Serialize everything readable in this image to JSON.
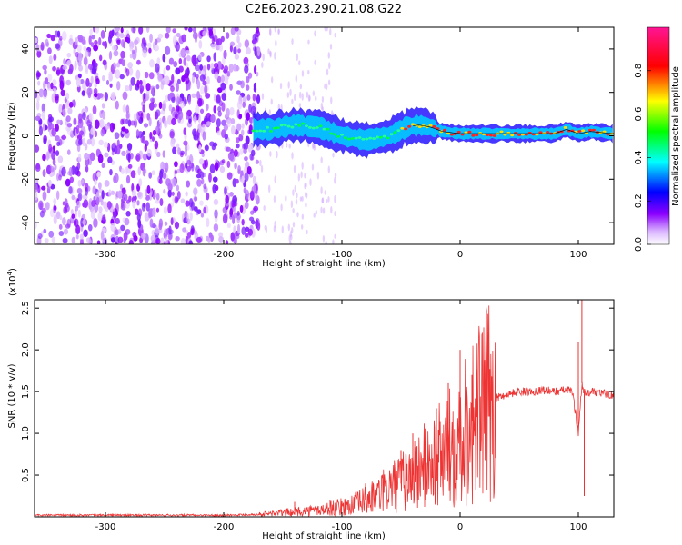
{
  "chart_data": [
    {
      "type": "heatmap",
      "title": "C2E6.2023.290.21.08.G22",
      "xlabel": "Height of straight line (km)",
      "ylabel": "Frequency (Hz)",
      "xlim": [
        -360,
        130
      ],
      "ylim": [
        -50,
        50
      ],
      "x_ticks": [
        -300,
        -200,
        -100,
        0,
        100
      ],
      "y_ticks": [
        -40,
        -20,
        0,
        20,
        40
      ],
      "colorbar": {
        "label": "Normalized spectral amplitude",
        "range": [
          0,
          1
        ],
        "ticks": [
          0.0,
          0.2,
          0.4,
          0.6,
          0.8
        ],
        "colors": [
          "#ffffff",
          "#8b00ff",
          "#0000ff",
          "#00ffff",
          "#00ff00",
          "#ffff00",
          "#ff0000",
          "#ff1493"
        ]
      },
      "grid": false,
      "ridge": {
        "x": [
          -175,
          -160,
          -140,
          -120,
          -100,
          -80,
          -60,
          -45,
          -35,
          -25,
          -15,
          0,
          20,
          40,
          60,
          80,
          90,
          100,
          110,
          130
        ],
        "y": [
          3,
          3,
          5,
          4,
          0,
          -2,
          0,
          4,
          5,
          4,
          2,
          1,
          1,
          1,
          1,
          1,
          3,
          1,
          2,
          1
        ]
      }
    },
    {
      "type": "line",
      "xlabel": "Height of straight line (km)",
      "ylabel": "SNR (10 * v/v)",
      "y_scale_label": "(x10",
      "y_scale_exp": "4",
      "y_scale_close": ")",
      "xlim": [
        -360,
        130
      ],
      "ylim": [
        0,
        2.6
      ],
      "x_ticks": [
        -300,
        -200,
        -100,
        0,
        100
      ],
      "y_ticks": [
        0.5,
        1.0,
        1.5,
        2.0,
        2.5
      ],
      "grid": false,
      "series": [
        {
          "color": "#ee3333",
          "x": [
            -360,
            -300,
            -250,
            -200,
            -170,
            -150,
            -130,
            -120,
            -110,
            -100,
            -90,
            -80,
            -70,
            -60,
            -50,
            -40,
            -30,
            -20,
            -10,
            0,
            10,
            20,
            30,
            40,
            50,
            60,
            70,
            80,
            90,
            95,
            100,
            103,
            106,
            110,
            120,
            130
          ],
          "y": [
            0.02,
            0.02,
            0.02,
            0.02,
            0.03,
            0.05,
            0.07,
            0.08,
            0.1,
            0.12,
            0.15,
            0.2,
            0.25,
            0.35,
            0.4,
            0.5,
            0.6,
            0.7,
            0.8,
            1.0,
            1.15,
            1.3,
            1.42,
            1.47,
            1.5,
            1.5,
            1.52,
            1.5,
            1.52,
            1.5,
            1.0,
            1.6,
            1.45,
            1.5,
            1.48,
            1.46
          ]
        }
      ],
      "peaks": {
        "x": [
          -140,
          -110,
          -80,
          -50,
          -40,
          -30,
          -20,
          -10,
          0,
          5,
          10,
          100,
          103,
          105
        ],
        "y": [
          0.18,
          0.2,
          0.4,
          0.8,
          1.0,
          0.9,
          1.3,
          1.6,
          2.0,
          1.5,
          1.7,
          2.1,
          2.6,
          0.25
        ]
      }
    }
  ]
}
